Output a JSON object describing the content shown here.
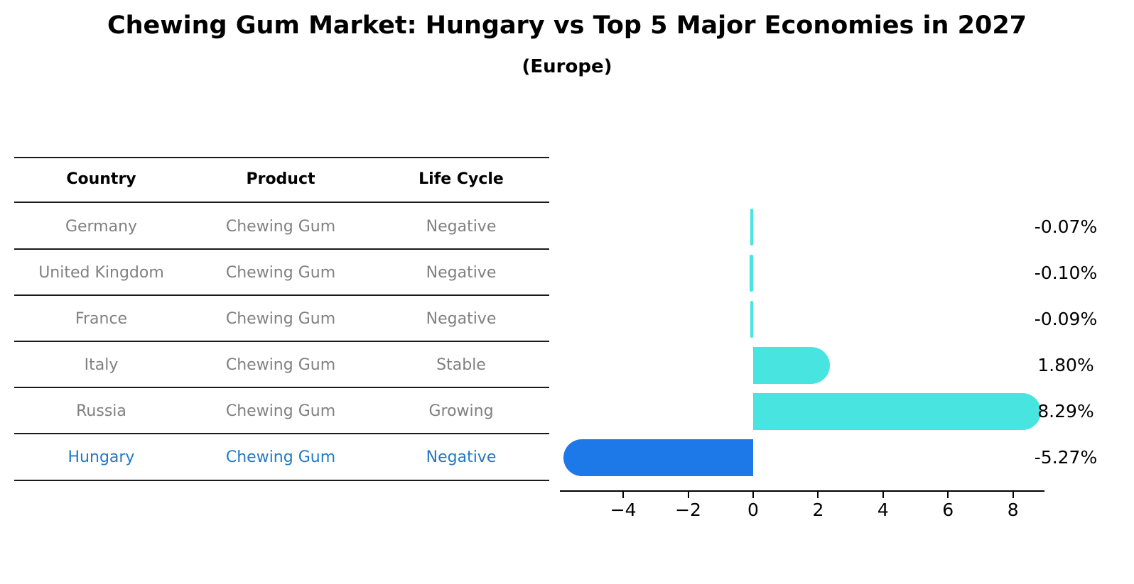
{
  "title": "Chewing Gum Market: Hungary vs Top 5 Major Economies in 2027",
  "subtitle": "(Europe)",
  "table": {
    "headers": [
      "Country",
      "Product",
      "Life Cycle"
    ],
    "rows": [
      {
        "country": "Germany",
        "product": "Chewing Gum",
        "life_cycle": "Negative",
        "highlighted": false
      },
      {
        "country": "United Kingdom",
        "product": "Chewing Gum",
        "life_cycle": "Negative",
        "highlighted": false
      },
      {
        "country": "France",
        "product": "Chewing Gum",
        "life_cycle": "Negative",
        "highlighted": false
      },
      {
        "country": "Italy",
        "product": "Chewing Gum",
        "life_cycle": "Stable",
        "highlighted": false
      },
      {
        "country": "Russia",
        "product": "Chewing Gum",
        "life_cycle": "Growing",
        "highlighted": false
      },
      {
        "country": "Hungary",
        "product": "Chewing Gum",
        "life_cycle": "Negative",
        "highlighted": true
      }
    ]
  },
  "chart_data": {
    "type": "bar",
    "orientation": "horizontal",
    "title": "Chewing Gum Market: Hungary vs Top 5 Major Economies in 2027",
    "subtitle": "(Europe)",
    "categories": [
      "Germany",
      "United Kingdom",
      "France",
      "Italy",
      "Russia",
      "Hungary"
    ],
    "values": [
      -0.07,
      -0.1,
      -0.09,
      1.8,
      8.29,
      -5.27
    ],
    "value_labels": [
      "-0.07%",
      "-0.10%",
      "-0.09%",
      "1.80%",
      "8.29%",
      "-5.27%"
    ],
    "unit": "%",
    "xticks": [
      -4,
      -2,
      0,
      2,
      4,
      6,
      8
    ],
    "xtick_labels": [
      "−4",
      "−2",
      "0",
      "2",
      "4",
      "6",
      "8"
    ],
    "xlim": [
      -5.95,
      8.97
    ],
    "grid": false,
    "legend": false,
    "highlight_index": 5,
    "bar_colors": [
      "#48E5E0",
      "#48E5E0",
      "#48E5E0",
      "#48E5E0",
      "#48E5E0",
      "#1E79E8"
    ]
  },
  "colors": {
    "cyan_bar": "#48E5E0",
    "highlight_bar": "#1E79E8",
    "highlight_text": "#2178C8",
    "table_body_text": "#808080",
    "axis": "#000000"
  }
}
